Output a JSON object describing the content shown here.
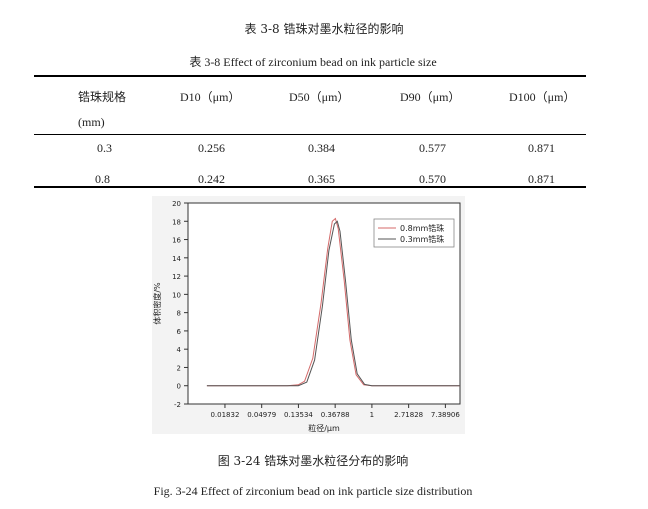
{
  "table": {
    "caption_cn": "表 3-8  锆珠对墨水粒径的影响",
    "caption_en": "表 3-8    Effect of zirconium bead on ink particle size",
    "headers": [
      "锆珠规格",
      "D10（μm）",
      "D50（μm）",
      "D90（μm）",
      "D100（μm）"
    ],
    "header_unit": "(mm)",
    "rows": [
      [
        "0.3",
        "0.256",
        "0.384",
        "0.577",
        "0.871"
      ],
      [
        "0.8",
        "0.242",
        "0.365",
        "0.570",
        "0.871"
      ]
    ]
  },
  "figure": {
    "caption_cn": "图 3-24  锆珠对墨水粒径分布的影响",
    "caption_en": "Fig. 3-24    Effect of zirconium bead on ink particle size distribution"
  },
  "chart_data": {
    "type": "line",
    "xlabel": "粒径/μm",
    "ylabel": "体积密度/%",
    "x_scale": "log",
    "x_tick_labels": [
      "0.01832",
      "0.04979",
      "0.13534",
      "0.36788",
      "1",
      "2.71828",
      "7.38906"
    ],
    "x_ticks": [
      0.01832,
      0.04979,
      0.13534,
      0.36788,
      1,
      2.71828,
      7.38906
    ],
    "xlim": [
      0.0067,
      11
    ],
    "ylim": [
      -2,
      20
    ],
    "y_ticks": [
      -2,
      0,
      2,
      4,
      6,
      8,
      10,
      12,
      14,
      16,
      18,
      20
    ],
    "legend_position": "top-right",
    "grid": false,
    "series": [
      {
        "name": "0.8mm锆珠",
        "color": "#d46a6a",
        "x": [
          0.0112,
          0.0183,
          0.0498,
          0.1,
          0.135,
          0.16,
          0.2,
          0.25,
          0.3,
          0.34,
          0.37,
          0.4,
          0.47,
          0.55,
          0.65,
          0.8,
          1.0,
          2.72,
          7.39,
          11
        ],
        "y": [
          0,
          0,
          0,
          0,
          0.1,
          0.5,
          3.0,
          9.0,
          15.0,
          18.0,
          18.3,
          17.2,
          11.5,
          5.0,
          1.2,
          0.1,
          0,
          0,
          0,
          0
        ]
      },
      {
        "name": "0.3mm锆珠",
        "color": "#555555",
        "x": [
          0.0112,
          0.0183,
          0.0498,
          0.1,
          0.135,
          0.17,
          0.21,
          0.26,
          0.31,
          0.36,
          0.39,
          0.42,
          0.49,
          0.57,
          0.67,
          0.82,
          1.0,
          2.72,
          7.39,
          11
        ],
        "y": [
          0,
          0,
          0,
          0,
          0,
          0.4,
          2.8,
          8.7,
          14.8,
          17.7,
          18.0,
          16.9,
          11.3,
          5.0,
          1.3,
          0.15,
          0,
          0,
          0,
          0
        ]
      }
    ]
  }
}
